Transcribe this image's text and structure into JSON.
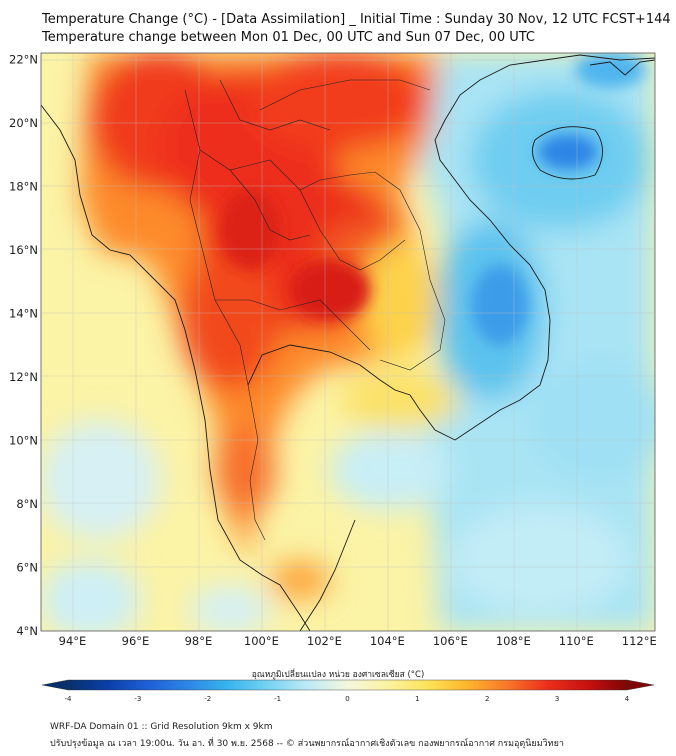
{
  "header": {
    "title_line1": "Temperature Change (°C) - [Data Assimilation] _ Initial Time : Sunday 30 Nov, 12 UTC FCST+144",
    "title_line2": "Temperature change between Mon 01 Dec, 00 UTC and Sun 07 Dec, 00 UTC"
  },
  "map": {
    "lat_labels": [
      "22°N",
      "20°N",
      "18°N",
      "16°N",
      "14°N",
      "12°N",
      "10°N",
      "8°N",
      "6°N",
      "4°N"
    ],
    "lon_labels": [
      "94°E",
      "96°E",
      "98°E",
      "100°E",
      "102°E",
      "104°E",
      "106°E",
      "108°E",
      "110°E",
      "112°E"
    ],
    "lat_range": [
      4,
      22.2
    ],
    "lon_range": [
      93,
      112.5
    ]
  },
  "colorbar": {
    "label": "อุณหภูมิเปลี่ยนแปลง หน่วย องศาเซลเซียส (°C)",
    "range": [
      -4,
      4
    ],
    "ticks": [
      "-4",
      "-3",
      "-2",
      "-1",
      "0",
      "1",
      "2",
      "3",
      "4"
    ],
    "colors": [
      "#08306b",
      "#0a3fa8",
      "#1f5fd6",
      "#2d86e6",
      "#38b4ee",
      "#74d3f2",
      "#bdeaf6",
      "#f4f7dc",
      "#fbf3a0",
      "#fde35a",
      "#fcb62c",
      "#f8772a",
      "#ec2f1b",
      "#c81010",
      "#7d0606"
    ]
  },
  "footer": {
    "line1": "WRF-DA Domain 01 :: Grid Resolution 9km x 9km",
    "line2": "ปรับปรุงข้อมูล ณ เวลา 19:00น. วัน อา. ที่ 30 พ.ย. 2568 -- © ส่วนพยากรณ์อากาศเชิงตัวเลข กองพยากรณ์อากาศ กรมอุตุนิยมวิทยา"
  }
}
